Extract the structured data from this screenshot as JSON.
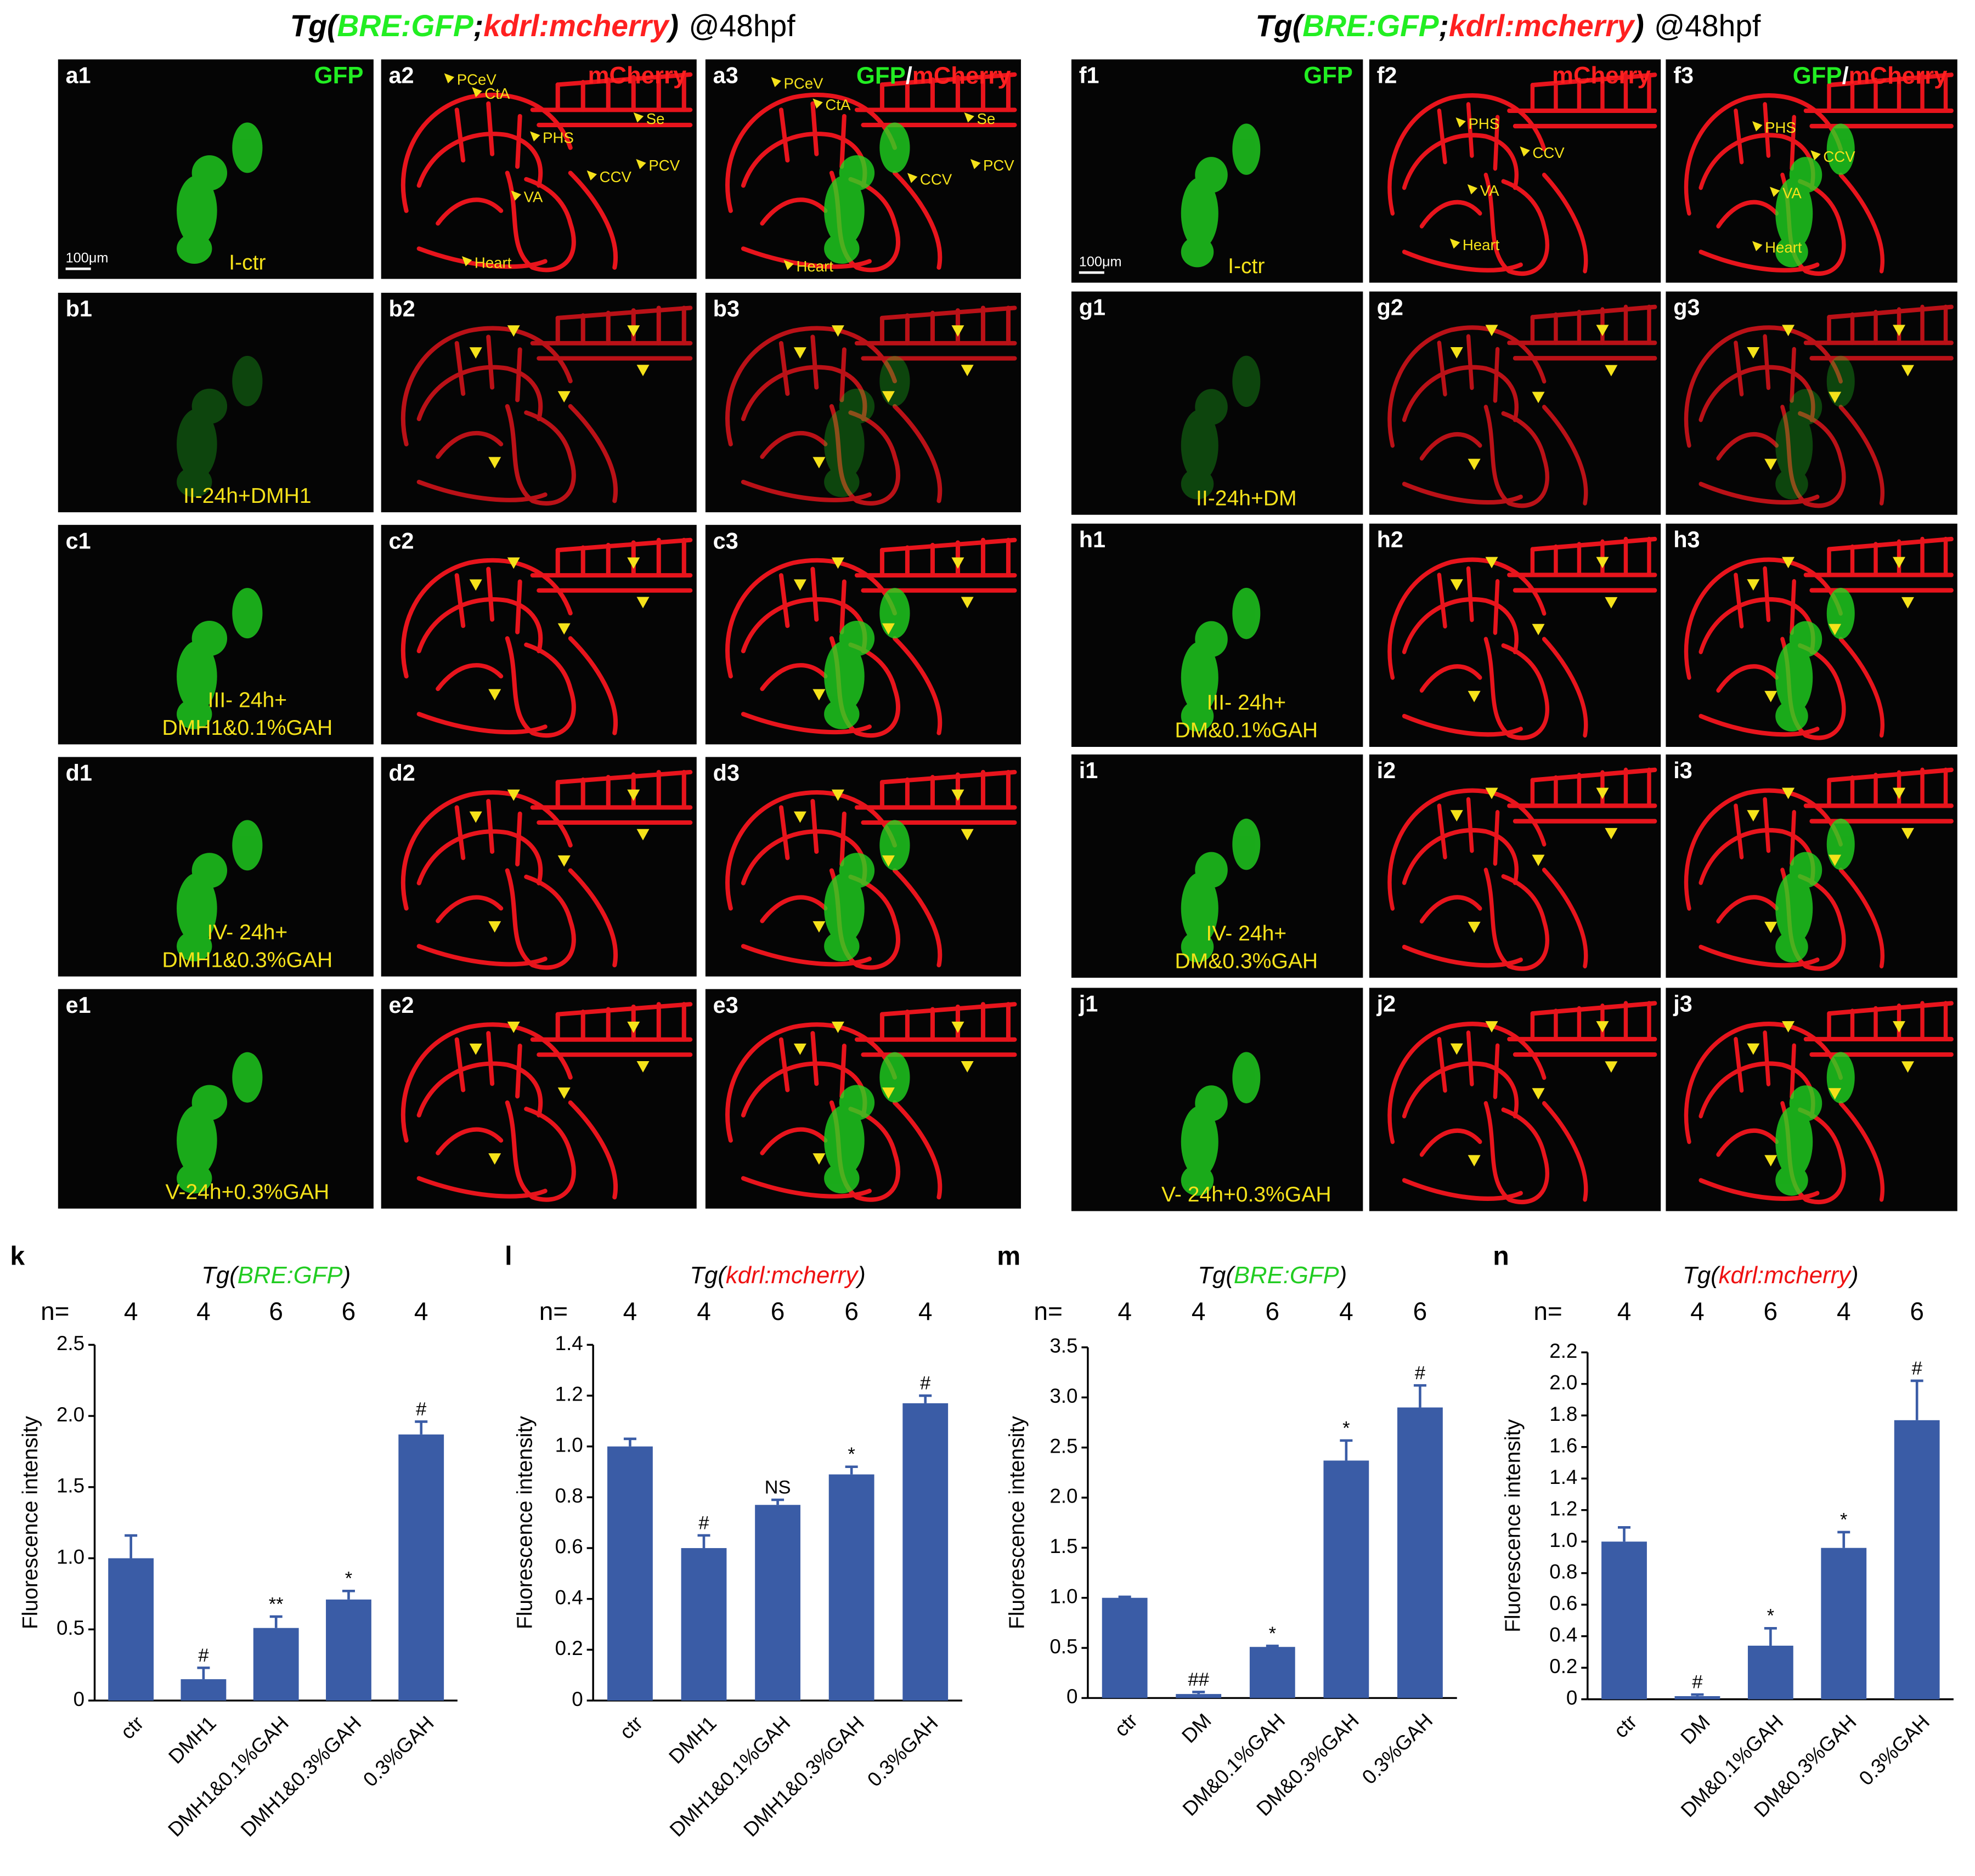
{
  "figure_titles": [
    {
      "open": "Tg(",
      "gfp": "BRE:GFP",
      "sep": ";",
      "mcherry": "kdrl:mcherry",
      "close": ")",
      "stage": "@48hpf"
    },
    {
      "open": "Tg(",
      "gfp": "BRE:GFP",
      "sep": ";",
      "mcherry": "kdrl:mcherry",
      "close": ")",
      "stage": "@48hpf"
    }
  ],
  "image_grids": [
    {
      "channel_labels": {
        "gfp": "GFP",
        "mcherry": "mCherry",
        "merge": [
          "GFP",
          "/",
          "mCherry"
        ]
      },
      "scale_bar": "100μm",
      "rows": [
        {
          "panels": [
            "a1",
            "a2",
            "a3"
          ],
          "condition": [
            "I-ctr"
          ]
        },
        {
          "panels": [
            "b1",
            "b2",
            "b3"
          ],
          "condition": [
            "II-24h+DMH1"
          ]
        },
        {
          "panels": [
            "c1",
            "c2",
            "c3"
          ],
          "condition": [
            "III- 24h+",
            "DMH1&0.1%GAH"
          ]
        },
        {
          "panels": [
            "d1",
            "d2",
            "d3"
          ],
          "condition": [
            "IV- 24h+",
            "DMH1&0.3%GAH"
          ]
        },
        {
          "panels": [
            "e1",
            "e2",
            "e3"
          ],
          "condition": [
            "V-24h+0.3%GAH"
          ]
        }
      ],
      "annotations": [
        [
          "PCeV",
          "CtA",
          "PHS",
          "Se",
          "CCV",
          "PCV",
          "VA",
          "Heart"
        ],
        [
          "PCeV",
          "CtA",
          "Se",
          "CCV",
          "PCV",
          "Heart"
        ]
      ]
    },
    {
      "channel_labels": {
        "gfp": "GFP",
        "mcherry": "mCherry",
        "merge": [
          "GFP",
          "/",
          "mCherry"
        ]
      },
      "scale_bar": "100μm",
      "rows": [
        {
          "panels": [
            "f1",
            "f2",
            "f3"
          ],
          "condition": [
            "I-ctr"
          ]
        },
        {
          "panels": [
            "g1",
            "g2",
            "g3"
          ],
          "condition": [
            "II-24h+DM"
          ]
        },
        {
          "panels": [
            "h1",
            "h2",
            "h3"
          ],
          "condition": [
            "III- 24h+",
            "DM&0.1%GAH"
          ]
        },
        {
          "panels": [
            "i1",
            "i2",
            "i3"
          ],
          "condition": [
            "IV- 24h+",
            "DM&0.3%GAH"
          ]
        },
        {
          "panels": [
            "j1",
            "j2",
            "j3"
          ],
          "condition": [
            "V- 24h+0.3%GAH"
          ]
        }
      ],
      "annotations": [
        [
          "PHS",
          "CCV",
          "VA",
          "Heart"
        ],
        [
          "PHS",
          "CCV",
          "VA",
          "Heart"
        ]
      ]
    }
  ],
  "chart_data": [
    {
      "type": "bar",
      "panel": "k",
      "title": {
        "open": "Tg(",
        "name": "BRE:GFP",
        "close": ")"
      },
      "title_color": "#22cc22",
      "n_label": "n=",
      "n": [
        4,
        4,
        6,
        6,
        4
      ],
      "categories": [
        "ctr",
        "DMH1",
        "DMH1&0.1%GAH",
        "DMH1&0.3%GAH",
        "0.3%GAH"
      ],
      "values": [
        1.0,
        0.15,
        0.51,
        0.71,
        1.87
      ],
      "errors": [
        0.16,
        0.08,
        0.08,
        0.06,
        0.09
      ],
      "significance": [
        null,
        "#",
        "**",
        "*",
        "#"
      ],
      "color": "#3a5ca6",
      "ylabel": "Fluorescence intensity",
      "ylim": [
        0,
        2.5
      ],
      "yticks": [
        0,
        0.5,
        {
          "value": 1,
          "label": "1.0"
        },
        1.5,
        {
          "value": 2,
          "label": "2.0"
        },
        2.5
      ]
    },
    {
      "type": "bar",
      "panel": "l",
      "title": {
        "open": "Tg(",
        "name": "kdrl:mcherry",
        "close": ")"
      },
      "title_color": "#ee1111",
      "n_label": "n=",
      "n": [
        4,
        4,
        6,
        6,
        4
      ],
      "categories": [
        "ctr",
        "DMH1",
        "DMH1&0.1%GAH",
        "DMH1&0.3%GAH",
        "0.3%GAH"
      ],
      "values": [
        1.0,
        0.6,
        0.77,
        0.89,
        1.17
      ],
      "errors": [
        0.03,
        0.05,
        0.02,
        0.03,
        0.03
      ],
      "significance": [
        null,
        "#",
        "NS",
        "*",
        "#"
      ],
      "color": "#3a5ca6",
      "ylabel": "Fluorescence intensity",
      "ylim": [
        0,
        1.4
      ],
      "yticks": [
        0,
        0.2,
        0.4,
        0.6,
        0.8,
        {
          "value": 1,
          "label": "1.0"
        },
        1.2,
        1.4
      ]
    },
    {
      "type": "bar",
      "panel": "m",
      "title": {
        "open": "Tg(",
        "name": "BRE:GFP",
        "close": ")"
      },
      "title_color": "#22cc22",
      "n_label": "n=",
      "n": [
        4,
        4,
        6,
        4,
        6
      ],
      "categories": [
        "ctr",
        "DM",
        "DM&0.1%GAH",
        "DM&0.3%GAH",
        "0.3%GAH"
      ],
      "values": [
        1.0,
        0.04,
        0.51,
        2.37,
        2.9
      ],
      "errors": [
        0.01,
        0.02,
        0.01,
        0.2,
        0.22
      ],
      "significance": [
        null,
        "##",
        "*",
        "*",
        "#"
      ],
      "color": "#3a5ca6",
      "ylabel": "Fluorescence intensity",
      "ylim": [
        0,
        3.5
      ],
      "yticks": [
        0,
        0.5,
        {
          "value": 1,
          "label": "1.0"
        },
        1.5,
        {
          "value": 2,
          "label": "2.0"
        },
        2.5,
        {
          "value": 3,
          "label": "3.0"
        },
        3.5
      ]
    },
    {
      "type": "bar",
      "panel": "n",
      "title": {
        "open": "Tg(",
        "name": "kdrl:mcherry",
        "close": ")"
      },
      "title_color": "#ee1111",
      "n_label": "n=",
      "n": [
        4,
        4,
        6,
        4,
        6
      ],
      "categories": [
        "ctr",
        "DM",
        "DM&0.1%GAH",
        "DM&0.3%GAH",
        "0.3%GAH"
      ],
      "values": [
        1.0,
        0.02,
        0.34,
        0.96,
        1.77
      ],
      "errors": [
        0.09,
        0.01,
        0.11,
        0.1,
        0.25
      ],
      "significance": [
        null,
        "#",
        "*",
        "*",
        "#"
      ],
      "color": "#3a5ca6",
      "ylabel": "Fluorescence intensity",
      "ylim": [
        0,
        2.2
      ],
      "yticks": [
        0,
        0.2,
        0.4,
        0.6,
        0.8,
        {
          "value": 1,
          "label": "1.0"
        },
        1.2,
        1.4,
        1.6,
        1.8,
        {
          "value": 2,
          "label": "2.0"
        },
        2.2
      ]
    }
  ]
}
